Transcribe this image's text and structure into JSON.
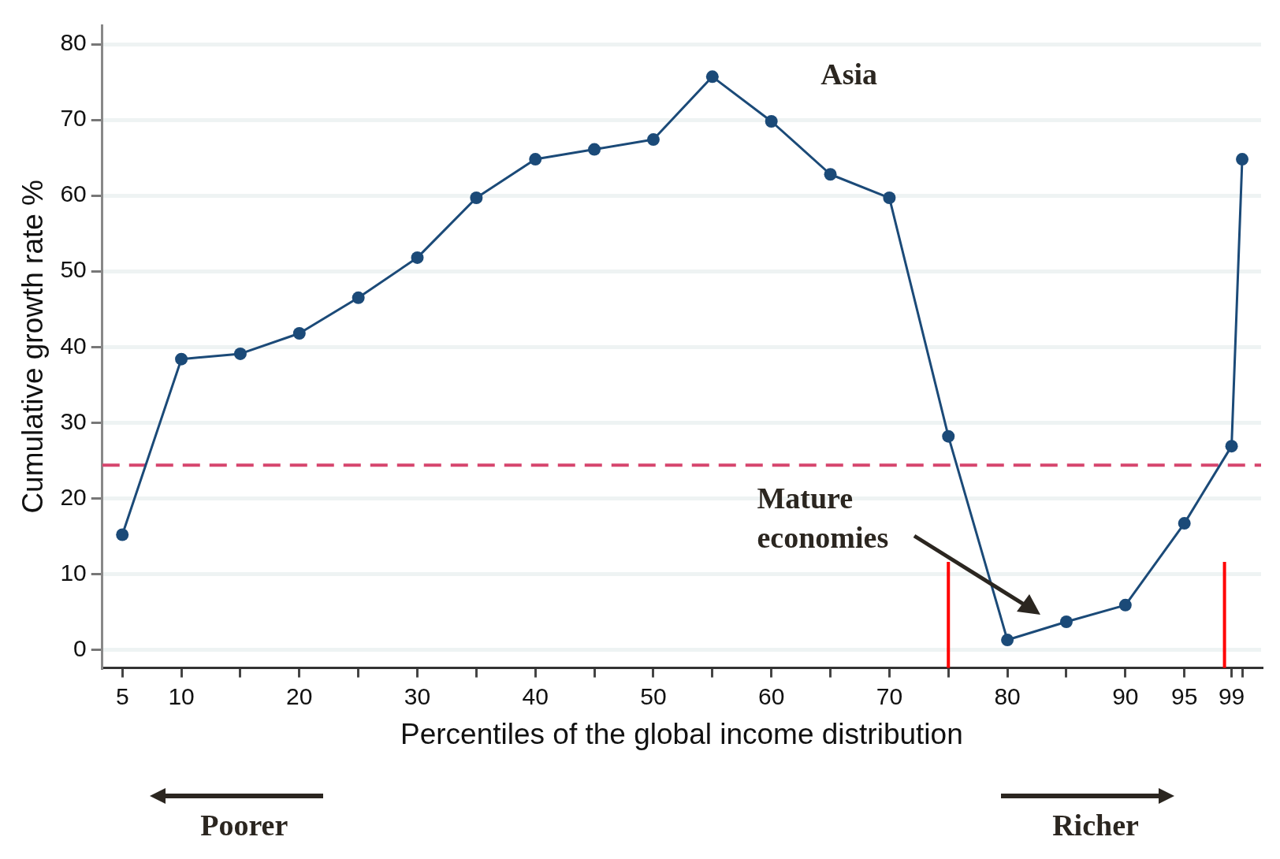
{
  "chart_data": {
    "type": "line",
    "xlabel": "Percentiles of the global income distribution",
    "ylabel": "Cumulative growth rate %",
    "x": [
      5,
      10,
      15,
      20,
      25,
      30,
      35,
      40,
      45,
      50,
      55,
      60,
      65,
      70,
      75,
      80,
      85,
      90,
      95,
      99,
      99.9
    ],
    "series": [
      {
        "color": "#1b4a78",
        "values": [
          15.2,
          38.4,
          39.1,
          41.8,
          46.5,
          51.8,
          59.7,
          64.8,
          66.1,
          67.4,
          75.7,
          69.8,
          62.8,
          59.7,
          28.2,
          1.3,
          3.7,
          5.9,
          16.7,
          26.9,
          64.8
        ]
      }
    ],
    "xlim": [
      3.3,
      101.5
    ],
    "ylim": [
      -2.4,
      82.5
    ],
    "xticks": [
      5,
      10,
      {
        "value": 15,
        "label": null
      },
      20,
      {
        "value": 25,
        "label": null
      },
      30,
      {
        "value": 35,
        "label": null
      },
      40,
      {
        "value": 45,
        "label": null
      },
      50,
      {
        "value": 55,
        "label": null
      },
      60,
      {
        "value": 65,
        "label": null
      },
      70,
      {
        "value": 75,
        "label": null
      },
      80,
      {
        "value": 85,
        "label": null
      },
      90,
      95,
      99,
      {
        "value": 99.9,
        "label": null
      }
    ],
    "yticks": [
      0,
      10,
      20,
      30,
      40,
      50,
      60,
      70,
      80
    ],
    "grid": "y",
    "marker": "circle",
    "line_style": "solid",
    "legend": false,
    "ref_lines": [
      {
        "axis": "y",
        "value": 24.4,
        "color": "#d6466e",
        "line_style": "dashed"
      },
      {
        "axis": "x",
        "value": 75,
        "color": "#ff0000",
        "line_style": "solid"
      },
      {
        "axis": "x",
        "value": 98.4,
        "color": "#ff0000",
        "line_style": "solid"
      }
    ],
    "annotations": [
      "Asia",
      "Mature economies",
      "Poorer",
      "Richer"
    ]
  }
}
